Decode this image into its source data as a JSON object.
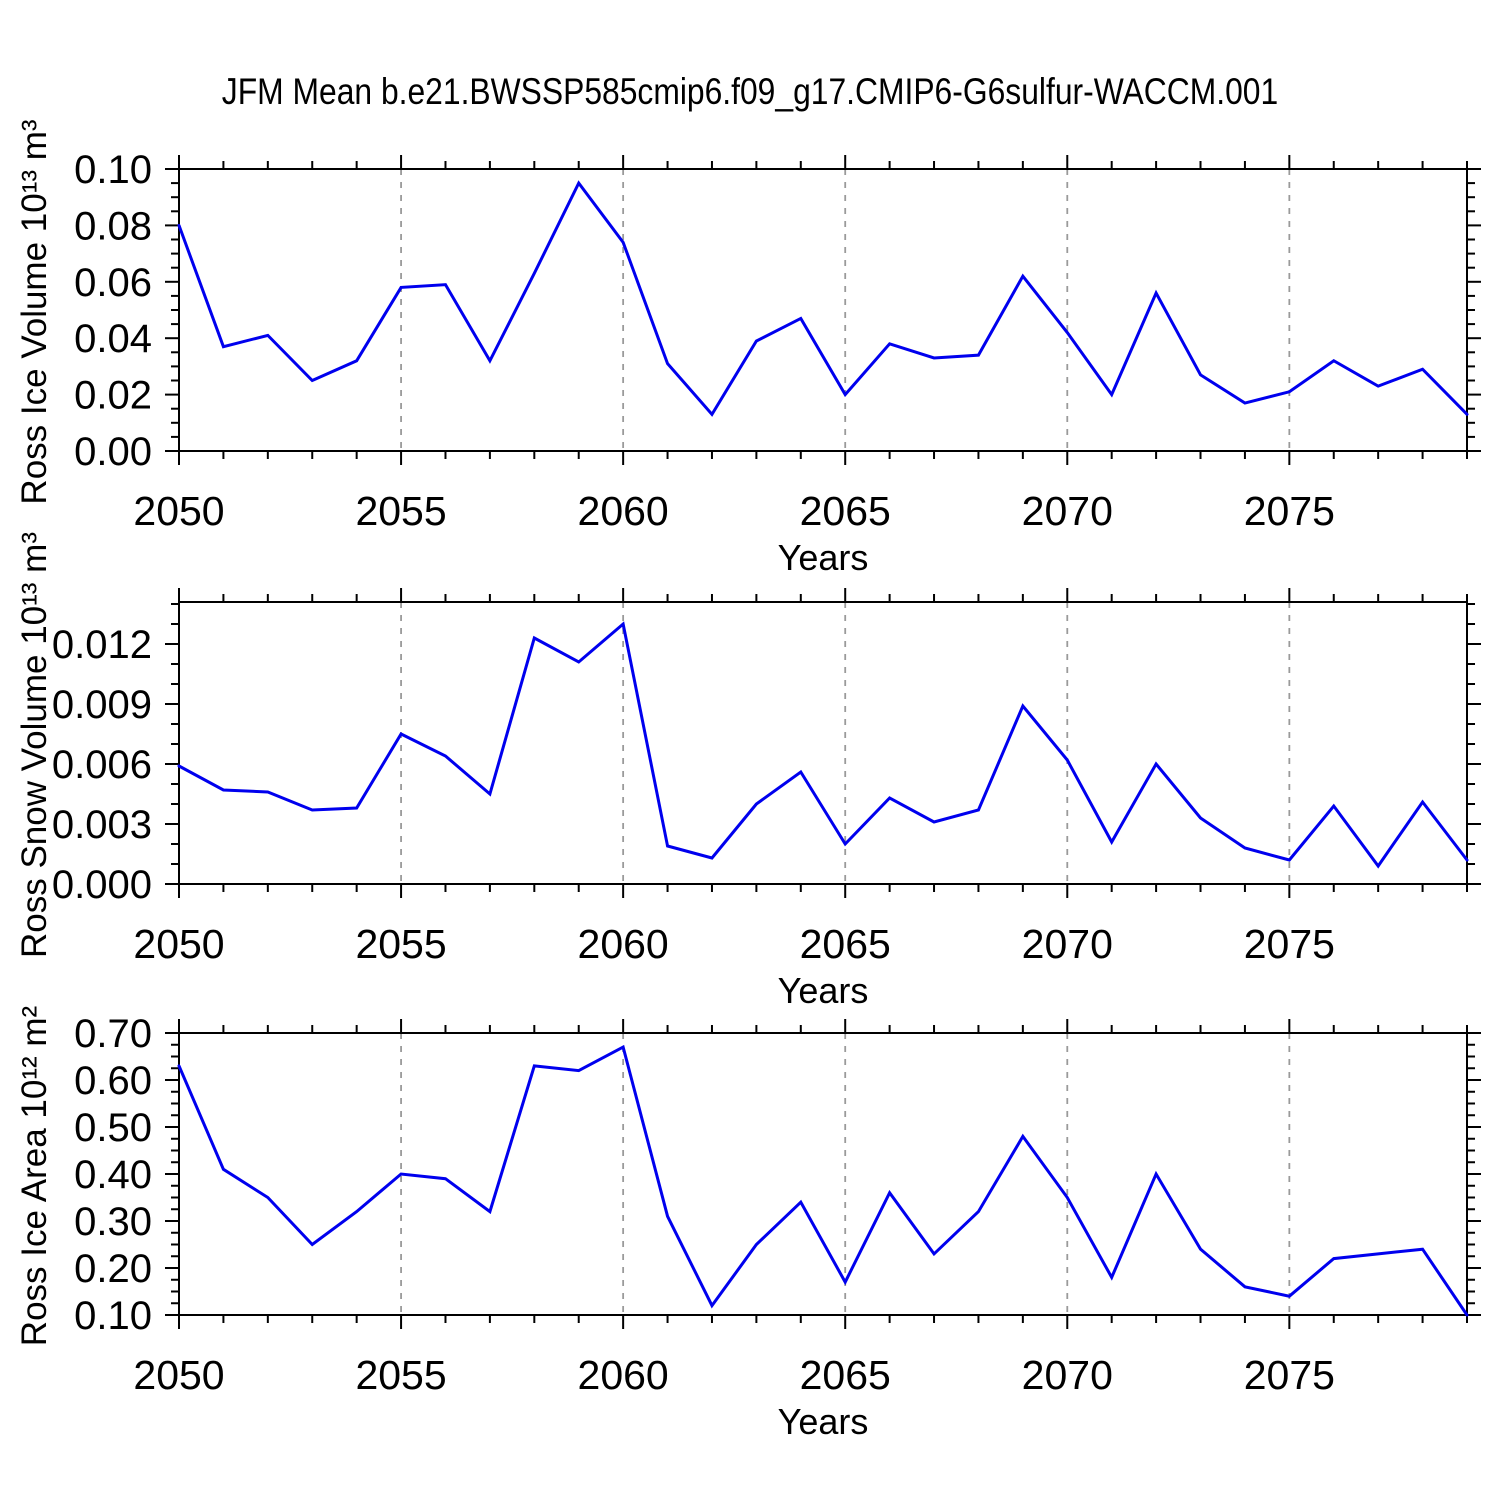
{
  "figure": {
    "title": "JFM Mean b.e21.BWSSP585cmip6.f09_g17.CMIP6-G6sulfur-WACCM.001",
    "line_color": "#0000ee",
    "grid_color": "#9a9a9a",
    "axis_color": "#000000",
    "background_color": "#ffffff"
  },
  "chart_data": [
    {
      "type": "line",
      "title": "JFM Mean b.e21.BWSSP585cmip6.f09_g17.CMIP6-G6sulfur-WACCM.001",
      "ylabel": "Ross Ice Volume 10¹³ m³",
      "xlabel": "Years",
      "legend": "none",
      "grid": "vertical-dashed-at-major-x",
      "x": [
        2050,
        2051,
        2052,
        2053,
        2054,
        2055,
        2056,
        2057,
        2058,
        2059,
        2060,
        2061,
        2062,
        2063,
        2064,
        2065,
        2066,
        2067,
        2068,
        2069,
        2070,
        2071,
        2072,
        2073,
        2074,
        2075,
        2076,
        2077,
        2078,
        2079
      ],
      "values": [
        0.08,
        0.037,
        0.041,
        0.025,
        0.032,
        0.058,
        0.059,
        0.032,
        0.063,
        0.095,
        0.074,
        0.031,
        0.013,
        0.039,
        0.047,
        0.02,
        0.038,
        0.033,
        0.034,
        0.062,
        0.042,
        0.02,
        0.056,
        0.027,
        0.017,
        0.021,
        0.032,
        0.023,
        0.029,
        0.013
      ],
      "xlim": [
        2050,
        2079
      ],
      "ylim": [
        0,
        0.1
      ],
      "x_major_ticks": [
        2050,
        2055,
        2060,
        2065,
        2070,
        2075
      ],
      "x_tick_labels": [
        "2050",
        "2055",
        "2060",
        "2065",
        "2070",
        "2075"
      ],
      "x_minor_step": 1,
      "x_grid": [
        2055,
        2060,
        2065,
        2070,
        2075
      ],
      "y_major_ticks": [
        0.0,
        0.02,
        0.04,
        0.06,
        0.08,
        0.1
      ],
      "y_tick_labels": [
        "0.00",
        "0.02",
        "0.04",
        "0.06",
        "0.08",
        "0.10"
      ],
      "y_minor_step": 0.005
    },
    {
      "type": "line",
      "title": "",
      "ylabel": "Ross Snow Volume 10¹³ m³",
      "xlabel": "Years",
      "legend": "none",
      "grid": "vertical-dashed-at-major-x",
      "x": [
        2050,
        2051,
        2052,
        2053,
        2054,
        2055,
        2056,
        2057,
        2058,
        2059,
        2060,
        2061,
        2062,
        2063,
        2064,
        2065,
        2066,
        2067,
        2068,
        2069,
        2070,
        2071,
        2072,
        2073,
        2074,
        2075,
        2076,
        2077,
        2078,
        2079
      ],
      "values": [
        0.0059,
        0.0047,
        0.0046,
        0.0037,
        0.0038,
        0.0075,
        0.0064,
        0.0045,
        0.0123,
        0.0111,
        0.013,
        0.0019,
        0.0013,
        0.004,
        0.0056,
        0.002,
        0.0043,
        0.0031,
        0.0037,
        0.0089,
        0.0062,
        0.0021,
        0.006,
        0.0033,
        0.0018,
        0.0012,
        0.0039,
        0.0009,
        0.0041,
        0.0012
      ],
      "xlim": [
        2050,
        2079
      ],
      "ylim": [
        0,
        0.0141
      ],
      "x_major_ticks": [
        2050,
        2055,
        2060,
        2065,
        2070,
        2075
      ],
      "x_tick_labels": [
        "2050",
        "2055",
        "2060",
        "2065",
        "2070",
        "2075"
      ],
      "x_minor_step": 1,
      "x_grid": [
        2055,
        2060,
        2065,
        2070,
        2075
      ],
      "y_major_ticks": [
        0.0,
        0.003,
        0.006,
        0.009,
        0.012
      ],
      "y_tick_labels": [
        "0.000",
        "0.003",
        "0.006",
        "0.009",
        "0.012"
      ],
      "y_minor_step": 0.001
    },
    {
      "type": "line",
      "title": "",
      "ylabel": "Ross Ice Area 10¹² m²",
      "xlabel": "Years",
      "legend": "none",
      "grid": "vertical-dashed-at-major-x",
      "x": [
        2050,
        2051,
        2052,
        2053,
        2054,
        2055,
        2056,
        2057,
        2058,
        2059,
        2060,
        2061,
        2062,
        2063,
        2064,
        2065,
        2066,
        2067,
        2068,
        2069,
        2070,
        2071,
        2072,
        2073,
        2074,
        2075,
        2076,
        2077,
        2078,
        2079
      ],
      "values": [
        0.63,
        0.41,
        0.35,
        0.25,
        0.32,
        0.4,
        0.39,
        0.32,
        0.63,
        0.62,
        0.67,
        0.31,
        0.12,
        0.25,
        0.34,
        0.17,
        0.36,
        0.23,
        0.32,
        0.48,
        0.35,
        0.18,
        0.4,
        0.24,
        0.16,
        0.14,
        0.22,
        0.23,
        0.24,
        0.1
      ],
      "xlim": [
        2050,
        2079
      ],
      "ylim": [
        0.1,
        0.7
      ],
      "x_major_ticks": [
        2050,
        2055,
        2060,
        2065,
        2070,
        2075
      ],
      "x_tick_labels": [
        "2050",
        "2055",
        "2060",
        "2065",
        "2070",
        "2075"
      ],
      "x_minor_step": 1,
      "x_grid": [
        2055,
        2060,
        2065,
        2070,
        2075
      ],
      "y_major_ticks": [
        0.1,
        0.2,
        0.3,
        0.4,
        0.5,
        0.6,
        0.7
      ],
      "y_tick_labels": [
        "0.10",
        "0.20",
        "0.30",
        "0.40",
        "0.50",
        "0.60",
        "0.70"
      ],
      "y_minor_step": 0.025
    }
  ]
}
